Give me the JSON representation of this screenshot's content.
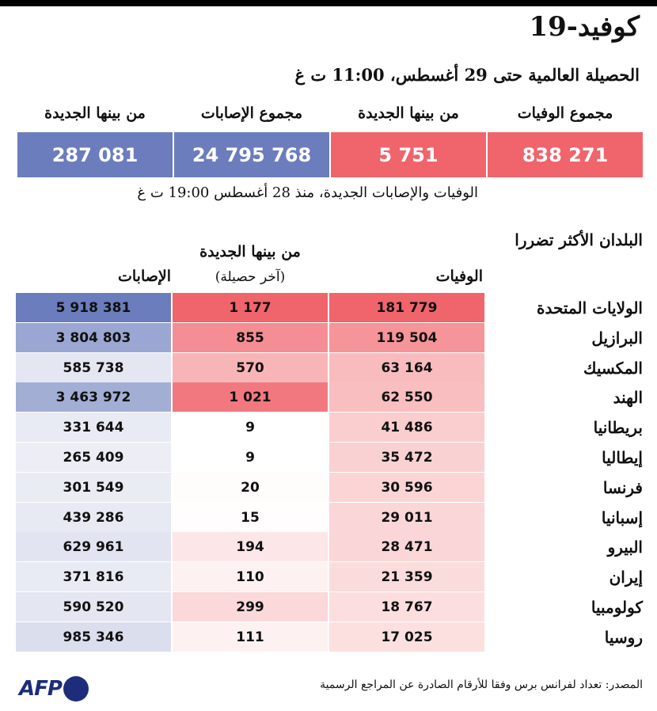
{
  "title": "كوفيد-19",
  "subtitle": "الحصيلة العالمية حتى 29 أغسطس، 11:00 ت غ",
  "summary": {
    "total_deaths_label": "مجموع الوفيات",
    "total_deaths": "838 271",
    "new_deaths_label": "من بينها الجديدة",
    "new_deaths": "5 751",
    "total_cases_label": "مجموع الإصابات",
    "total_cases": "24 795 768",
    "new_cases_label": "من بينها الجديدة",
    "new_cases": "287 081"
  },
  "note": "الوفيات والإصابات الجديدة، منذ 28 أغسطس 19:00 ت غ",
  "table": {
    "section_title": "البلدان الأكثر تضررا",
    "deaths_header": "الوفيات",
    "new_header_line1": "من بينها الجديدة",
    "new_header_line2": "(آخر حصيلة)",
    "cases_header": "الإصابات",
    "rows": [
      {
        "country": "الولايات المتحدة",
        "deaths": "181 779",
        "new": "1 177",
        "cases": "5 918 381",
        "deaths_intensity": 1.0,
        "new_intensity": 1.0,
        "cases_intensity": 1.0
      },
      {
        "country": "البرازيل",
        "deaths": "119 504",
        "new": "855",
        "cases": "3 804 803",
        "deaths_intensity": 0.65,
        "new_intensity": 0.73,
        "cases_intensity": 0.64
      },
      {
        "country": "المكسيك",
        "deaths": "63 164",
        "new": "570",
        "cases": "585 738",
        "deaths_intensity": 0.35,
        "new_intensity": 0.48,
        "cases_intensity": 0.1
      },
      {
        "country": "الهند",
        "deaths": "62 550",
        "new": "1 021",
        "cases": "3 463 972",
        "deaths_intensity": 0.34,
        "new_intensity": 0.87,
        "cases_intensity": 0.58
      },
      {
        "country": "بريطانيا",
        "deaths": "41 486",
        "new": "9",
        "cases": "331 644",
        "deaths_intensity": 0.23,
        "new_intensity": 0.0,
        "cases_intensity": 0.06
      },
      {
        "country": "إيطاليا",
        "deaths": "35 472",
        "new": "9",
        "cases": "265 409",
        "deaths_intensity": 0.2,
        "new_intensity": 0.0,
        "cases_intensity": 0.04
      },
      {
        "country": "فرنسا",
        "deaths": "30 596",
        "new": "20",
        "cases": "301 549",
        "deaths_intensity": 0.17,
        "new_intensity": 0.02,
        "cases_intensity": 0.05
      },
      {
        "country": "إسبانيا",
        "deaths": "29 011",
        "new": "15",
        "cases": "439 286",
        "deaths_intensity": 0.16,
        "new_intensity": 0.01,
        "cases_intensity": 0.07
      },
      {
        "country": "البيرو",
        "deaths": "28 471",
        "new": "194",
        "cases": "629 961",
        "deaths_intensity": 0.16,
        "new_intensity": 0.16,
        "cases_intensity": 0.11
      },
      {
        "country": "إيران",
        "deaths": "21 359",
        "new": "110",
        "cases": "371 816",
        "deaths_intensity": 0.12,
        "new_intensity": 0.09,
        "cases_intensity": 0.06
      },
      {
        "country": "كولومبيا",
        "deaths": "18 767",
        "new": "299",
        "cases": "590 520",
        "deaths_intensity": 0.1,
        "new_intensity": 0.25,
        "cases_intensity": 0.1
      },
      {
        "country": "روسيا",
        "deaths": "17 025",
        "new": "111",
        "cases": "985 346",
        "deaths_intensity": 0.09,
        "new_intensity": 0.09,
        "cases_intensity": 0.17
      }
    ]
  },
  "source": "المصدر: تعداد لفرانس برس وفقا للأرقام الصادرة عن المراجع الرسمية",
  "logo_text": "AFP",
  "colors": {
    "red": "#f0646c",
    "red_light": "#fdecec",
    "blue": "#6b7dbd",
    "blue_light": "#f1f2f7"
  }
}
